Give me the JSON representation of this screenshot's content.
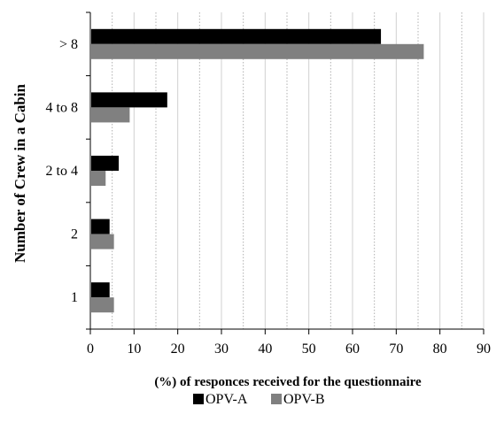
{
  "chart_data": {
    "type": "bar",
    "orientation": "horizontal",
    "categories": [
      ">  8",
      "4 to 8",
      "2 to 4",
      "2",
      "1"
    ],
    "series": [
      {
        "name": "OPV-A",
        "values": [
          66.5,
          17.6,
          6.5,
          4.4,
          4.4
        ],
        "color": "#000000"
      },
      {
        "name": "OPV-B",
        "values": [
          76.3,
          9.0,
          3.5,
          5.4,
          5.4
        ],
        "color": "#808080"
      }
    ],
    "xlabel": "(%) of responces received for the questionnaire",
    "ylabel": "Number of Crew in a Cabin",
    "xlim": [
      0,
      90
    ],
    "xticks": [
      0,
      10,
      20,
      30,
      40,
      50,
      60,
      70,
      80,
      90
    ],
    "minor_gridlines": [
      5,
      15,
      25,
      35,
      45,
      55,
      65,
      75,
      85
    ],
    "grid": "vertical",
    "legend_position": "bottom"
  }
}
